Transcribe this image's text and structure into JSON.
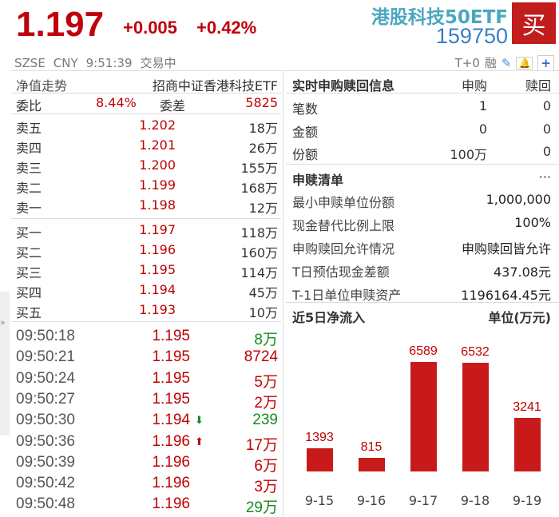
{
  "header": {
    "price": "1.197",
    "change": "+0.005",
    "change_pct": "+0.42%",
    "name": "港股科技50ETF",
    "code": "159750",
    "buy_label": "买",
    "exchange": "SZSE",
    "currency": "CNY",
    "time": "9:51:39",
    "status": "交易中",
    "t0": "T+0",
    "margin": "融"
  },
  "left": {
    "tab": "净值走势",
    "fund_name": "招商中证香港科技ETF",
    "ratio_label": "委比",
    "ratio_value": "8.44%",
    "diff_label": "委差",
    "diff_value": "5825",
    "asks": [
      {
        "label": "卖五",
        "price": "1.202",
        "vol": "18万"
      },
      {
        "label": "卖四",
        "price": "1.201",
        "vol": "26万"
      },
      {
        "label": "卖三",
        "price": "1.200",
        "vol": "155万"
      },
      {
        "label": "卖二",
        "price": "1.199",
        "vol": "168万"
      },
      {
        "label": "卖一",
        "price": "1.198",
        "vol": "12万"
      }
    ],
    "bids": [
      {
        "label": "买一",
        "price": "1.197",
        "vol": "118万"
      },
      {
        "label": "买二",
        "price": "1.196",
        "vol": "160万"
      },
      {
        "label": "买三",
        "price": "1.195",
        "vol": "114万"
      },
      {
        "label": "买四",
        "price": "1.194",
        "vol": "45万"
      },
      {
        "label": "买五",
        "price": "1.193",
        "vol": "10万"
      }
    ],
    "trades": [
      {
        "time": "09:50:18",
        "price": "1.195",
        "arrow": "",
        "vol": "8万",
        "dir": "green"
      },
      {
        "time": "09:50:21",
        "price": "1.195",
        "arrow": "",
        "vol": "8724",
        "dir": "red"
      },
      {
        "time": "09:50:24",
        "price": "1.195",
        "arrow": "",
        "vol": "5万",
        "dir": "red"
      },
      {
        "time": "09:50:27",
        "price": "1.195",
        "arrow": "",
        "vol": "2万",
        "dir": "red"
      },
      {
        "time": "09:50:30",
        "price": "1.194",
        "arrow": "⬇",
        "vol": "239",
        "dir": "green"
      },
      {
        "time": "09:50:36",
        "price": "1.196",
        "arrow": "⬆",
        "vol": "17万",
        "dir": "red"
      },
      {
        "time": "09:50:39",
        "price": "1.196",
        "arrow": "",
        "vol": "6万",
        "dir": "red"
      },
      {
        "time": "09:50:42",
        "price": "1.196",
        "arrow": "",
        "vol": "3万",
        "dir": "red"
      },
      {
        "time": "09:50:48",
        "price": "1.196",
        "arrow": "",
        "vol": "29万",
        "dir": "green"
      }
    ]
  },
  "right": {
    "title": "实时申购赎回信息",
    "col1": "申购",
    "col2": "赎回",
    "rows": [
      {
        "label": "笔数",
        "v1": "1",
        "v2": "0"
      },
      {
        "label": "金额",
        "v1": "0",
        "v2": "0"
      },
      {
        "label": "份额",
        "v1": "100万",
        "v2": "0"
      }
    ],
    "list_title": "申赎清单",
    "more": "···",
    "list": [
      {
        "label": "最小申赎单位份额",
        "value": "1,000,000"
      },
      {
        "label": "现金替代比例上限",
        "value": "100%"
      },
      {
        "label": "申购赎回允许情况",
        "value": "申购赎回皆允许"
      },
      {
        "label": "T日预估现金差额",
        "value": "437.08元"
      },
      {
        "label": "T-1日单位申赎资产",
        "value": "1196164.45元"
      }
    ]
  },
  "chart_data": {
    "type": "bar",
    "title": "近5日净流入",
    "unit": "单位(万元)",
    "categories": [
      "9-15",
      "9-16",
      "9-17",
      "9-18",
      "9-19"
    ],
    "values": [
      1393,
      815,
      6589,
      6532,
      3241
    ],
    "color": "#c81a1a"
  }
}
